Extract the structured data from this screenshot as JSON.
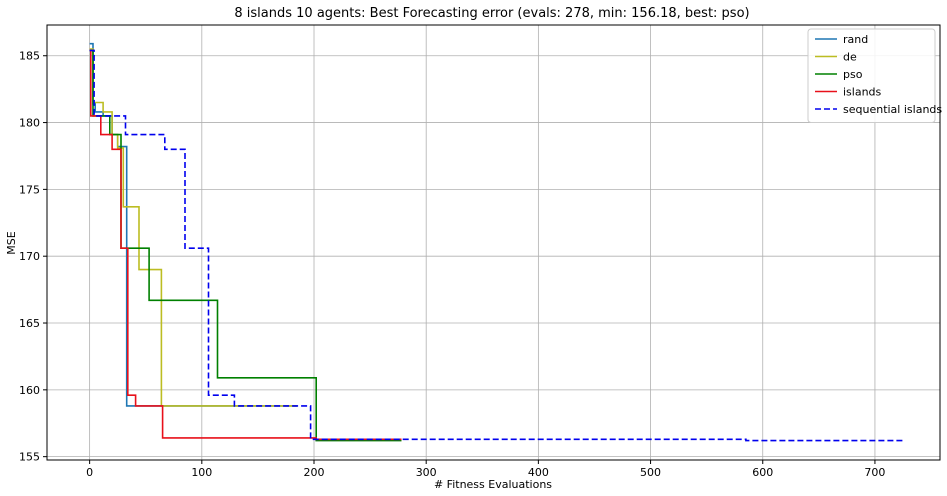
{
  "chart_data": {
    "type": "line",
    "title": "8 islands 10 agents: Best Forecasting error (evals: 278, min: 156.18, best: pso)",
    "xlabel": "# Fitness Evaluations",
    "ylabel": "MSE",
    "xlim": [
      -38,
      758
    ],
    "ylim": [
      154.75,
      187.3
    ],
    "xticks": [
      0,
      100,
      200,
      300,
      400,
      500,
      600,
      700
    ],
    "yticks": [
      155,
      160,
      165,
      170,
      175,
      180,
      185
    ],
    "grid": true,
    "legend_position": "top-right",
    "series": [
      {
        "name": "rand",
        "color": "#1f77b4",
        "style": "solid",
        "steps": [
          [
            0,
            185.9
          ],
          [
            3,
            185.9
          ],
          [
            3,
            181.4
          ],
          [
            5,
            181.4
          ],
          [
            5,
            180.8
          ],
          [
            12,
            180.8
          ],
          [
            12,
            180.5
          ],
          [
            20,
            180.5
          ],
          [
            20,
            179.1
          ],
          [
            25,
            179.1
          ],
          [
            25,
            178.2
          ],
          [
            33,
            178.2
          ],
          [
            33,
            158.8
          ],
          [
            185,
            158.8
          ]
        ]
      },
      {
        "name": "de",
        "color": "#bcbd22",
        "style": "solid",
        "steps": [
          [
            0,
            185.5
          ],
          [
            3,
            185.5
          ],
          [
            3,
            181.5
          ],
          [
            12,
            181.5
          ],
          [
            12,
            180.8
          ],
          [
            20,
            180.8
          ],
          [
            20,
            179.1
          ],
          [
            25,
            179.1
          ],
          [
            25,
            178.1
          ],
          [
            30,
            178.1
          ],
          [
            30,
            173.7
          ],
          [
            44,
            173.7
          ],
          [
            44,
            169.0
          ],
          [
            64,
            169.0
          ],
          [
            64,
            158.8
          ],
          [
            185,
            158.8
          ]
        ]
      },
      {
        "name": "pso",
        "color": "#008000",
        "style": "solid",
        "steps": [
          [
            0,
            185.4
          ],
          [
            3,
            185.4
          ],
          [
            3,
            180.5
          ],
          [
            18,
            180.5
          ],
          [
            18,
            179.1
          ],
          [
            28,
            179.1
          ],
          [
            28,
            170.6
          ],
          [
            53,
            170.6
          ],
          [
            53,
            166.7
          ],
          [
            114,
            166.7
          ],
          [
            114,
            160.9
          ],
          [
            202,
            160.9
          ],
          [
            202,
            156.2
          ],
          [
            278,
            156.2
          ]
        ]
      },
      {
        "name": "islands",
        "color": "#e8101a",
        "style": "solid",
        "steps": [
          [
            0,
            185.4
          ],
          [
            1,
            185.4
          ],
          [
            1,
            180.5
          ],
          [
            10,
            180.5
          ],
          [
            10,
            179.1
          ],
          [
            20,
            179.1
          ],
          [
            20,
            178.0
          ],
          [
            28,
            178.0
          ],
          [
            28,
            170.6
          ],
          [
            34,
            170.6
          ],
          [
            34,
            159.6
          ],
          [
            41,
            159.6
          ],
          [
            41,
            158.8
          ],
          [
            65,
            158.8
          ],
          [
            65,
            156.4
          ],
          [
            202,
            156.4
          ],
          [
            202,
            156.3
          ],
          [
            278,
            156.3
          ]
        ]
      },
      {
        "name": "sequential islands",
        "color": "#0000ee",
        "style": "dashed",
        "steps": [
          [
            0,
            185.4
          ],
          [
            4,
            185.4
          ],
          [
            4,
            180.5
          ],
          [
            32,
            180.5
          ],
          [
            32,
            179.1
          ],
          [
            67,
            179.1
          ],
          [
            67,
            178.0
          ],
          [
            85,
            178.0
          ],
          [
            85,
            170.6
          ],
          [
            106,
            170.6
          ],
          [
            106,
            159.6
          ],
          [
            129,
            159.6
          ],
          [
            129,
            158.8
          ],
          [
            197,
            158.8
          ],
          [
            197,
            156.3
          ],
          [
            585,
            156.3
          ],
          [
            585,
            156.2
          ],
          [
            725,
            156.2
          ]
        ]
      }
    ]
  }
}
